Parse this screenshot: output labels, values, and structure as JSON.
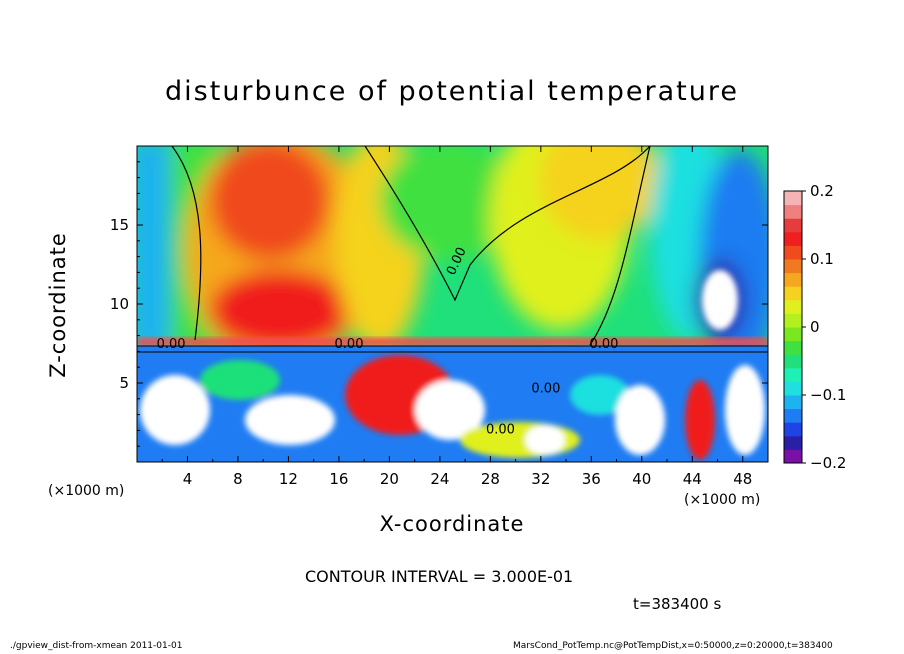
{
  "chart_data": {
    "type": "heatmap",
    "title": "disturbunce of potential temperature",
    "xlabel": "X-coordinate",
    "ylabel": "Z-coordinate",
    "x_unit_label": "(×1000 m)",
    "xlim": [
      0,
      50
    ],
    "ylim": [
      0,
      20
    ],
    "x_ticks": [
      4,
      8,
      12,
      16,
      20,
      24,
      28,
      32,
      36,
      40,
      44,
      48
    ],
    "y_ticks": [
      5,
      10,
      15
    ],
    "colorbar": {
      "range": [
        -0.2,
        0.2
      ],
      "ticks": [
        "0.2",
        "0.1",
        "0",
        "−0.1",
        "−0.2"
      ],
      "tick_values": [
        0.2,
        0.1,
        0,
        -0.1,
        -0.2
      ],
      "colors": [
        "#7a10a8",
        "#2b1fa8",
        "#1f44e6",
        "#1f7cf2",
        "#1fb2f0",
        "#1fdfe0",
        "#1ff0b4",
        "#1fe07a",
        "#40e040",
        "#7ae81f",
        "#b4f01f",
        "#e0f01f",
        "#f5d21f",
        "#f5a81f",
        "#f07a1f",
        "#f04a1f",
        "#f01f1f",
        "#e63c3c",
        "#f08080",
        "#f5b4b4"
      ]
    },
    "contour_labels": [
      "0.00"
    ],
    "contour_interval_text": "CONTOUR INTERVAL = 3.000E-01",
    "grid": false
  },
  "time_label": "t=383400 s",
  "footer": {
    "left": "./gpview_dist-from-xmean  2011-01-01",
    "right": "MarsCond_PotTemp.nc@PotTempDist,x=0:50000,z=0:20000,t=383400"
  }
}
